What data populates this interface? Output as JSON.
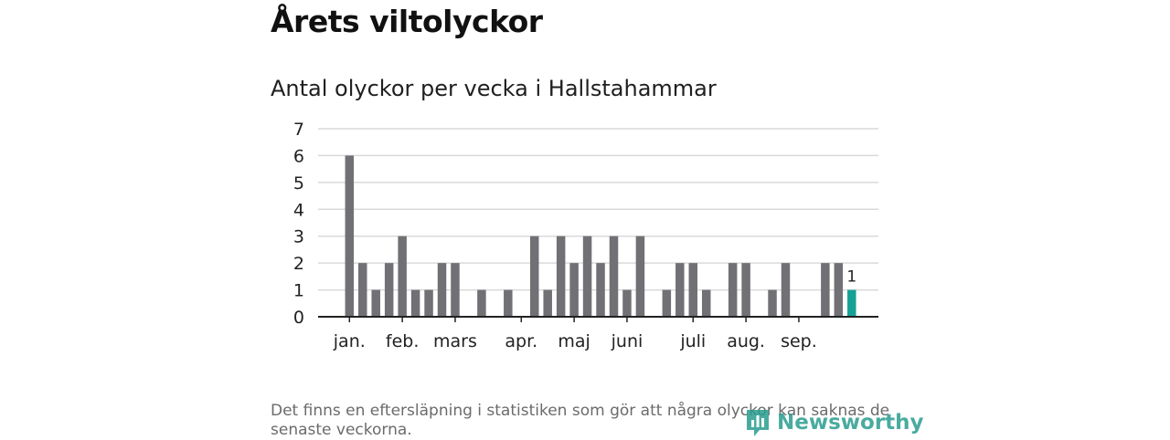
{
  "header": {
    "title": "Årets viltolyckor",
    "subtitle": "Antal olyckor per vecka i Hallstahammar"
  },
  "footer": {
    "note": "Det finns en eftersläpning i statistiken som gör att några olyckor kan saknas de senaste veckorna.",
    "brand": "Newsworthy"
  },
  "colors": {
    "bar": "#717075",
    "highlight": "#16a196",
    "grid": "#d9d9d9",
    "axis": "#222222",
    "brand": "#2a9d8f"
  },
  "chart_data": {
    "type": "bar",
    "title": "Antal olyckor per vecka i Hallstahammar",
    "xlabel": "",
    "ylabel": "",
    "ylim": [
      0,
      7
    ],
    "yticks": [
      0,
      1,
      2,
      3,
      4,
      5,
      6,
      7
    ],
    "grid": true,
    "weeks": [
      1,
      2,
      3,
      4,
      5,
      6,
      7,
      8,
      9,
      10,
      11,
      12,
      13,
      14,
      15,
      16,
      17,
      18,
      19,
      20,
      21,
      22,
      23,
      24,
      25,
      26,
      27,
      28,
      29,
      30,
      31,
      32,
      33,
      34,
      35,
      36,
      37,
      38,
      39
    ],
    "values": [
      6,
      2,
      1,
      2,
      3,
      1,
      1,
      2,
      2,
      0,
      1,
      0,
      1,
      0,
      3,
      1,
      3,
      2,
      3,
      2,
      3,
      1,
      3,
      0,
      1,
      2,
      2,
      1,
      0,
      2,
      2,
      0,
      1,
      2,
      0,
      0,
      2,
      2,
      1
    ],
    "highlight_week": 39,
    "highlight_label": "1",
    "month_labels": [
      {
        "label": "jan.",
        "week": 1
      },
      {
        "label": "feb.",
        "week": 5
      },
      {
        "label": "mars",
        "week": 9
      },
      {
        "label": "apr.",
        "week": 14
      },
      {
        "label": "maj",
        "week": 18
      },
      {
        "label": "juni",
        "week": 22
      },
      {
        "label": "juli",
        "week": 27
      },
      {
        "label": "aug.",
        "week": 31
      },
      {
        "label": "sep.",
        "week": 35
      }
    ]
  }
}
